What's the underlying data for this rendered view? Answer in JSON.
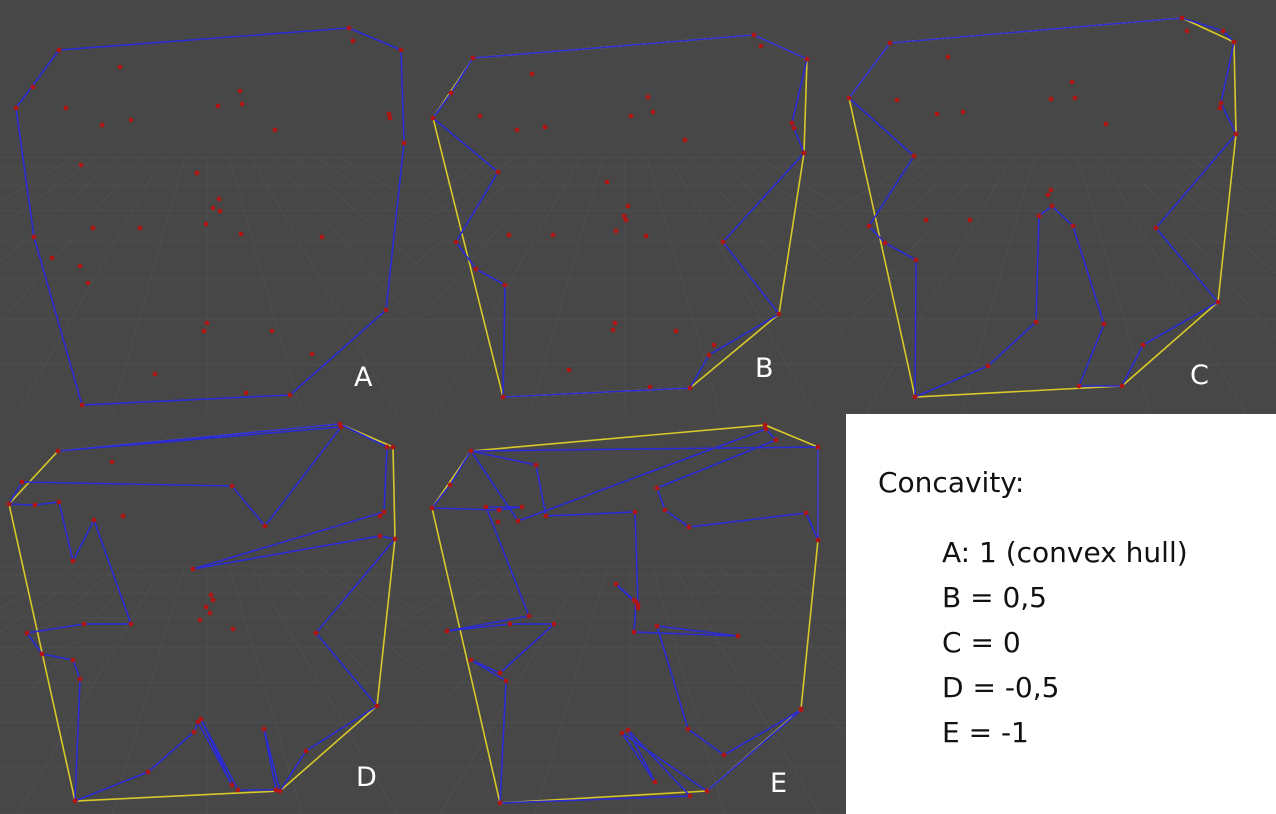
{
  "colors": {
    "background": "#474747",
    "grid": "#555555",
    "point": "#b01515",
    "inner_edge": "#2a2ad6",
    "hull_edge": "#d8c82a"
  },
  "panels": [
    {
      "label": "A",
      "concavity": "1"
    },
    {
      "label": "B",
      "concavity": "0,5"
    },
    {
      "label": "C",
      "concavity": "0"
    },
    {
      "label": "D",
      "concavity": "-0,5"
    },
    {
      "label": "E",
      "concavity": "-1"
    }
  ],
  "legend": {
    "title": "Concavity:",
    "items": [
      "A: 1  (convex hull)",
      "B = 0,5",
      "C = 0",
      "D = -0,5",
      "E = -1"
    ]
  }
}
